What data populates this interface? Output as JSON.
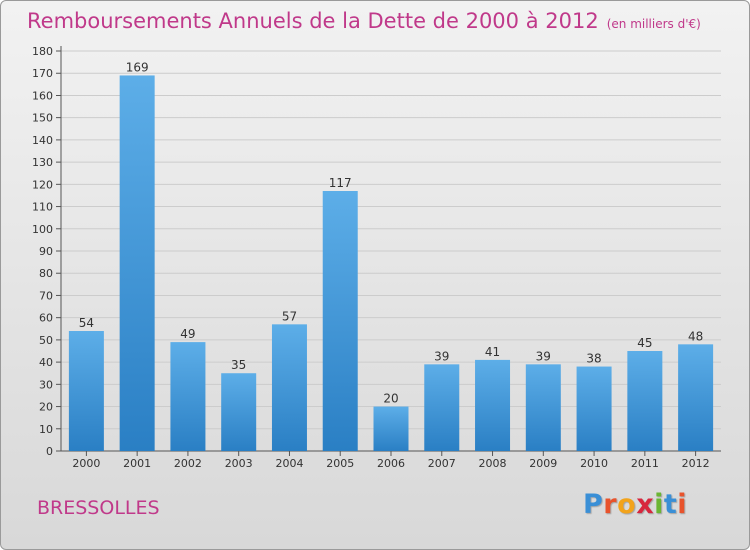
{
  "title": "Remboursements Annuels de la Dette de 2000 à 2012",
  "subtitle": "(en milliers d'€)",
  "commune": "BRESSOLLES",
  "logo": {
    "letters": [
      "P",
      "r",
      "o",
      "x",
      "i",
      "t",
      "i"
    ],
    "colors": [
      "#3a8fd6",
      "#e8532c",
      "#f2a31b",
      "#d7263d",
      "#6bb533",
      "#3a8fd6",
      "#e8532c"
    ]
  },
  "colors": {
    "title": "#c0398a",
    "bar_light": "#5daee8",
    "bar_dark": "#2a7fc4",
    "grid": "#cccccc"
  },
  "chart_data": {
    "type": "bar",
    "categories": [
      "2000",
      "2001",
      "2002",
      "2003",
      "2004",
      "2005",
      "2006",
      "2007",
      "2008",
      "2009",
      "2010",
      "2011",
      "2012"
    ],
    "values": [
      54,
      169,
      49,
      35,
      57,
      117,
      20,
      39,
      41,
      39,
      38,
      45,
      48
    ],
    "ylim": [
      0,
      180
    ],
    "yticks": [
      0,
      10,
      20,
      30,
      40,
      50,
      60,
      70,
      80,
      90,
      100,
      110,
      120,
      130,
      140,
      150,
      160,
      170,
      180
    ],
    "grid": true,
    "data_labels": true
  }
}
